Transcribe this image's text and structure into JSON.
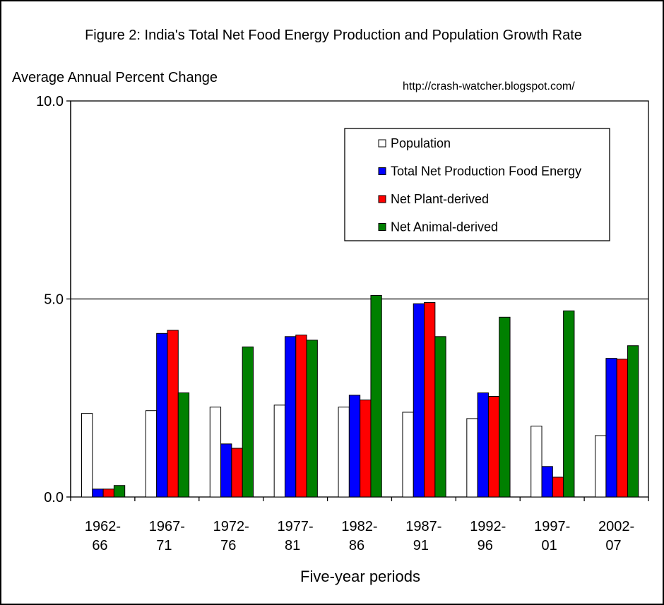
{
  "chart_data": {
    "type": "bar",
    "title": "Figure 2: India's Total Net Food Energy Production and Population Growth Rate",
    "ylabel": "Average Annual Percent Change",
    "xlabel": "Five-year periods",
    "annotation": "http://crash-watcher.blogspot.com/",
    "ylim": [
      0,
      10
    ],
    "yticks": [
      "0.0",
      "5.0",
      "10.0"
    ],
    "grid": "horizontal at 5.0",
    "legend_position": "top-right",
    "categories": [
      [
        "1962-",
        "66"
      ],
      [
        "1967-",
        "71"
      ],
      [
        "1972-",
        "76"
      ],
      [
        "1977-",
        "81"
      ],
      [
        "1982-",
        "86"
      ],
      [
        "1987-",
        "91"
      ],
      [
        "1992-",
        "96"
      ],
      [
        "1997-",
        "01"
      ],
      [
        "2002-",
        "07"
      ]
    ],
    "series": [
      {
        "name": "Population",
        "color": "#FFFFFF",
        "values": [
          2.11,
          2.18,
          2.27,
          2.32,
          2.27,
          2.14,
          1.98,
          1.79,
          1.55
        ]
      },
      {
        "name": "Total Net Production Food Energy",
        "color": "#0000FF",
        "values": [
          0.2,
          4.13,
          1.34,
          4.05,
          2.57,
          4.88,
          2.63,
          0.77,
          3.5
        ]
      },
      {
        "name": "Net Plant-derived",
        "color": "#FF0000",
        "values": [
          0.2,
          4.21,
          1.23,
          4.09,
          2.45,
          4.91,
          2.54,
          0.5,
          3.48
        ]
      },
      {
        "name": "Net Animal-derived",
        "color": "#008000",
        "values": [
          0.29,
          2.63,
          3.79,
          3.96,
          5.09,
          4.05,
          4.54,
          4.7,
          3.82
        ]
      }
    ]
  }
}
